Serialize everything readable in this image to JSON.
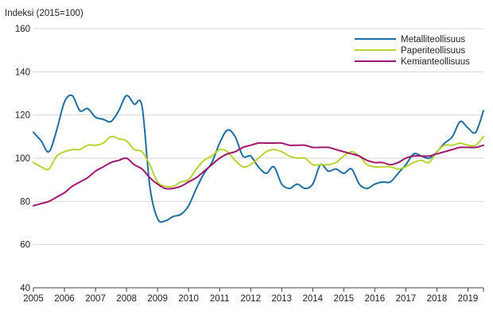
{
  "chart_data": {
    "type": "line",
    "title": "",
    "ylabel": "Indeksi (2015=100)",
    "xlabel": "",
    "ylim": [
      40,
      160
    ],
    "yticks": [
      40,
      60,
      80,
      100,
      120,
      140,
      160
    ],
    "xlim": [
      2005,
      2019.5
    ],
    "xticks": [
      "2005",
      "2006",
      "2007",
      "2008",
      "2009",
      "2010",
      "2011",
      "2012",
      "2013",
      "2014",
      "2015",
      "2016",
      "2017",
      "2018",
      "2019"
    ],
    "grid": "horizontal",
    "legend_position": "top-right",
    "x": [
      2005.0,
      2005.25,
      2005.5,
      2005.75,
      2006.0,
      2006.25,
      2006.5,
      2006.75,
      2007.0,
      2007.25,
      2007.5,
      2007.75,
      2008.0,
      2008.25,
      2008.5,
      2008.75,
      2009.0,
      2009.25,
      2009.5,
      2009.75,
      2010.0,
      2010.25,
      2010.5,
      2010.75,
      2011.0,
      2011.25,
      2011.5,
      2011.75,
      2012.0,
      2012.25,
      2012.5,
      2012.75,
      2013.0,
      2013.25,
      2013.5,
      2013.75,
      2014.0,
      2014.25,
      2014.5,
      2014.75,
      2015.0,
      2015.25,
      2015.5,
      2015.75,
      2016.0,
      2016.25,
      2016.5,
      2016.75,
      2017.0,
      2017.25,
      2017.5,
      2017.75,
      2018.0,
      2018.25,
      2018.5,
      2018.75,
      2019.0,
      2019.25,
      2019.5
    ],
    "series": [
      {
        "name": "Metalliteollisuus",
        "color": "#1f6e9f",
        "values": [
          112,
          108,
          103,
          113,
          126,
          129,
          122,
          123,
          119,
          118,
          117,
          122,
          129,
          125,
          124,
          87,
          72,
          71,
          73,
          74,
          78,
          86,
          93,
          98,
          107,
          113,
          110,
          101,
          101,
          96,
          93,
          96,
          88,
          86,
          88,
          86,
          88,
          97,
          94,
          95,
          93,
          95,
          88,
          86,
          88,
          89,
          89,
          93,
          97,
          102,
          101,
          100,
          103,
          107,
          110,
          117,
          114,
          112,
          122
        ]
      },
      {
        "name": "Paperiteollisuus",
        "color": "#b8d432",
        "values": [
          98,
          96,
          95,
          101,
          103,
          104,
          104,
          106,
          106,
          107,
          110,
          109,
          108,
          104,
          103,
          97,
          89,
          87,
          87,
          89,
          90,
          95,
          99,
          101,
          104,
          103,
          99,
          96,
          97,
          100,
          103,
          104,
          103,
          101,
          100,
          100,
          97,
          97,
          97,
          98,
          101,
          103,
          101,
          97,
          96,
          96,
          96,
          95,
          96,
          98,
          99,
          98,
          103,
          106,
          106,
          107,
          106,
          106,
          110
        ]
      },
      {
        "name": "Kemianteollisuus",
        "color": "#a0186e",
        "values": [
          78,
          79,
          80,
          82,
          84,
          87,
          89,
          91,
          94,
          96,
          98,
          99,
          100,
          97,
          95,
          91,
          88,
          86,
          86,
          87,
          89,
          91,
          94,
          97,
          100,
          102,
          103,
          105,
          106,
          107,
          107,
          107,
          107,
          106,
          106,
          106,
          105,
          105,
          105,
          104,
          103,
          102,
          101,
          99,
          98,
          98,
          97,
          98,
          100,
          101,
          101,
          101,
          102,
          103,
          104,
          105,
          105,
          105,
          106
        ]
      }
    ]
  }
}
